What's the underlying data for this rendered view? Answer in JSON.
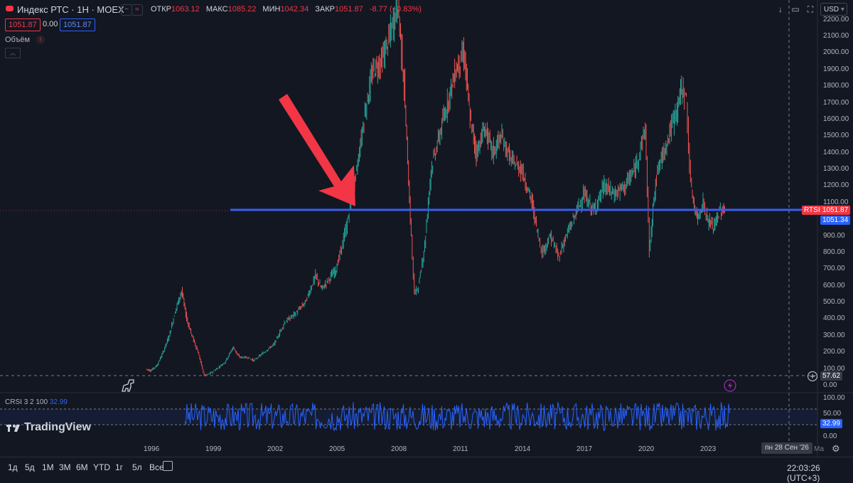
{
  "header": {
    "symbol_title": "Индекс РТС · 1Н · MOEX",
    "ohlc": [
      {
        "label": "ОТКР",
        "value": "1063.12"
      },
      {
        "label": "МАКС",
        "value": "1085.22"
      },
      {
        "label": "МИН",
        "value": "1042.34"
      },
      {
        "label": "ЗАКР",
        "value": "1051.87"
      }
    ],
    "change": "-8.77 (−0.83%)",
    "sell_price": "1051.87",
    "spread": "0.00",
    "buy_price": "1051.87",
    "volume_label": "Объём",
    "currency": "USD"
  },
  "price_axis": {
    "ticks": [
      "2200.00",
      "2100.00",
      "2000.00",
      "1900.00",
      "1800.00",
      "1700.00",
      "1600.00",
      "1500.00",
      "1400.00",
      "1300.00",
      "1200.00",
      "1100.00",
      "1000.00",
      "900.00",
      "800.00",
      "700.00",
      "600.00",
      "500.00",
      "400.00",
      "300.00",
      "200.00",
      "100.00",
      "0.00"
    ],
    "symbol_tag": "RTSI",
    "last_price": "1051.87",
    "line_price": "1051.34",
    "crosshair_price": "57.62"
  },
  "time_axis": {
    "ticks": [
      "1996",
      "1999",
      "2002",
      "2005",
      "2008",
      "2011",
      "2014",
      "2017",
      "2020",
      "2023"
    ],
    "crosshair_date": "пн 28 Сен '26",
    "cut_label": "Ма"
  },
  "indicator": {
    "name": "CRSI",
    "params": "3 2 100",
    "value": "32.99",
    "axis_ticks": [
      "100.00",
      "50.00",
      "0.00"
    ],
    "tag": "32.99"
  },
  "ranges": [
    "1д",
    "5д",
    "1М",
    "3М",
    "6М",
    "YTD",
    "1г",
    "5л",
    "Все"
  ],
  "clock": "22:03:26 (UTC+3)",
  "brand": "TradingView",
  "colors": {
    "up": "#26a69a",
    "down": "#ef5350",
    "line": "#2962ff",
    "arrow": "#f23645",
    "bg": "#131722"
  },
  "chart_data": {
    "type": "line",
    "ylim": [
      0,
      2250
    ],
    "x": [
      1995.75,
      1996.0,
      1996.3,
      1996.6,
      1996.9,
      1997.2,
      1997.5,
      1997.75,
      1998.0,
      1998.3,
      1998.6,
      1998.85,
      1999.2,
      1999.6,
      2000.0,
      2000.3,
      2000.7,
      2001.0,
      2001.5,
      2002.0,
      2002.5,
      2003.0,
      2003.5,
      2004.0,
      2004.3,
      2004.7,
      2005.0,
      2005.5,
      2006.0,
      2006.4,
      2006.8,
      2007.2,
      2007.6,
      2008.0,
      2008.3,
      2008.6,
      2008.8,
      2009.0,
      2009.3,
      2009.6,
      2010.0,
      2010.4,
      2010.8,
      2011.2,
      2011.5,
      2011.8,
      2012.2,
      2012.6,
      2013.0,
      2013.5,
      2014.0,
      2014.5,
      2014.8,
      2015.0,
      2015.4,
      2015.8,
      2016.0,
      2016.5,
      2017.0,
      2017.5,
      2018.0,
      2018.5,
      2019.0,
      2019.5,
      2020.0,
      2020.2,
      2020.5,
      2021.0,
      2021.5,
      2021.8,
      2022.0,
      2022.2,
      2022.5,
      2022.8,
      2023.0,
      2023.3,
      2023.6,
      2023.85
    ],
    "values": [
      100,
      90,
      120,
      200,
      300,
      450,
      570,
      400,
      300,
      200,
      60,
      70,
      100,
      140,
      230,
      170,
      170,
      150,
      200,
      250,
      380,
      430,
      500,
      660,
      580,
      650,
      700,
      950,
      1300,
      1650,
      1900,
      1950,
      2100,
      2300,
      1800,
      1000,
      550,
      600,
      850,
      1300,
      1500,
      1700,
      1900,
      2000,
      1600,
      1400,
      1550,
      1400,
      1500,
      1350,
      1300,
      1100,
      900,
      800,
      900,
      770,
      850,
      1000,
      1150,
      1050,
      1200,
      1150,
      1200,
      1300,
      1550,
      800,
      1250,
      1450,
      1650,
      1800,
      1700,
      1200,
      1000,
      1100,
      1000,
      950,
      1050,
      1052
    ],
    "series": [
      {
        "name": "Индекс РТС",
        "role": "price"
      }
    ],
    "hline": 1051.34,
    "indicator_series": {
      "name": "CRSI",
      "last": 32.99,
      "band": [
        30,
        70
      ]
    }
  }
}
